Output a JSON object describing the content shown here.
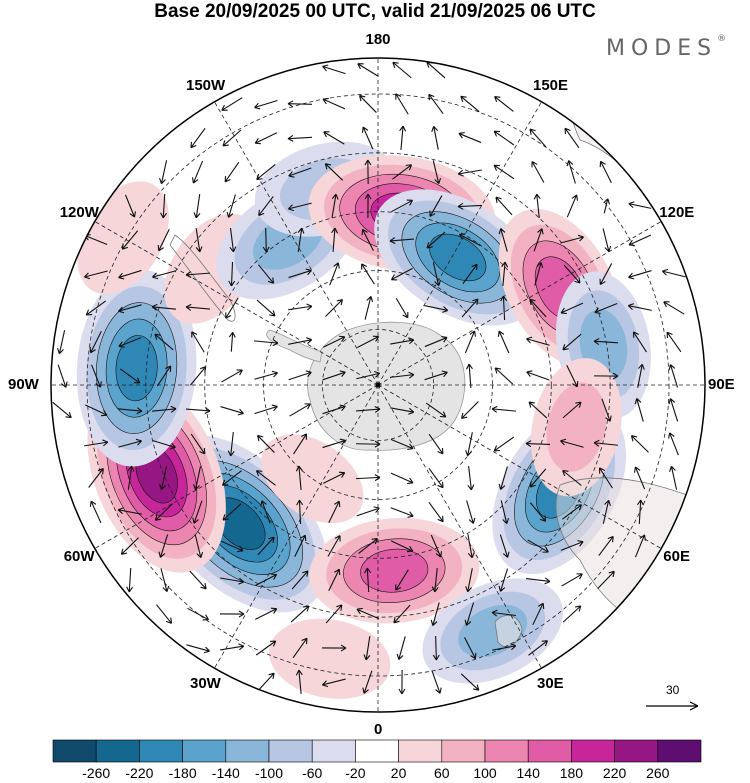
{
  "title": "Base 20/09/2025 00 UTC, valid 21/09/2025 06 UTC",
  "brand": {
    "name": "MODES",
    "mark": "®"
  },
  "lon_labels": [
    {
      "text": "0",
      "lon": 0
    },
    {
      "text": "30E",
      "lon": 30
    },
    {
      "text": "60E",
      "lon": 60
    },
    {
      "text": "90E",
      "lon": 90
    },
    {
      "text": "120E",
      "lon": 120
    },
    {
      "text": "150E",
      "lon": 150
    },
    {
      "text": "180",
      "lon": 180
    },
    {
      "text": "150W",
      "lon": -150
    },
    {
      "text": "120W",
      "lon": -120
    },
    {
      "text": "90W",
      "lon": -90
    },
    {
      "text": "60W",
      "lon": -60
    },
    {
      "text": "30W",
      "lon": -30
    }
  ],
  "colorbar": {
    "colors": [
      "#0f4a6b",
      "#14678f",
      "#2f87b6",
      "#5aa3cc",
      "#8ab6d9",
      "#b7c6e2",
      "#dcdcef",
      "#ffffff",
      "#f6d6d9",
      "#f2b2c2",
      "#ec86b1",
      "#e05ca6",
      "#c7259a",
      "#961684",
      "#5e0e70"
    ],
    "tick_labels": [
      "-260",
      "-220",
      "-180",
      "-140",
      "-100",
      "-60",
      "-20",
      "20",
      "60",
      "100",
      "140",
      "180",
      "220",
      "260"
    ]
  },
  "reference_vector": {
    "label": "30"
  },
  "anomalies": [
    {
      "lon": -45,
      "r": 0.6,
      "value": -270
    },
    {
      "lon": -68,
      "r": 0.73,
      "value": 250
    },
    {
      "lon": -94,
      "r": 0.74,
      "value": -230
    },
    {
      "lon": -125,
      "r": 0.62,
      "value": 60
    },
    {
      "lon": -148,
      "r": 0.52,
      "value": -140
    },
    {
      "lon": -165,
      "r": 0.62,
      "value": -110
    },
    {
      "lon": 172,
      "r": 0.53,
      "value": 210
    },
    {
      "lon": 148,
      "r": 0.46,
      "value": -200
    },
    {
      "lon": 118,
      "r": 0.63,
      "value": 170
    },
    {
      "lon": 60,
      "r": 0.64,
      "value": -200
    },
    {
      "lon": 5,
      "r": 0.57,
      "value": 170
    },
    {
      "lon": 25,
      "r": 0.83,
      "value": -120
    },
    {
      "lon": 100,
      "r": 0.7,
      "value": -120
    },
    {
      "lon": 78,
      "r": 0.62,
      "value": 100
    },
    {
      "lon": -10,
      "r": 0.85,
      "value": 60
    },
    {
      "lon": -120,
      "r": 0.9,
      "value": 60
    },
    {
      "lon": -35,
      "r": 0.35,
      "value": 40
    }
  ]
}
